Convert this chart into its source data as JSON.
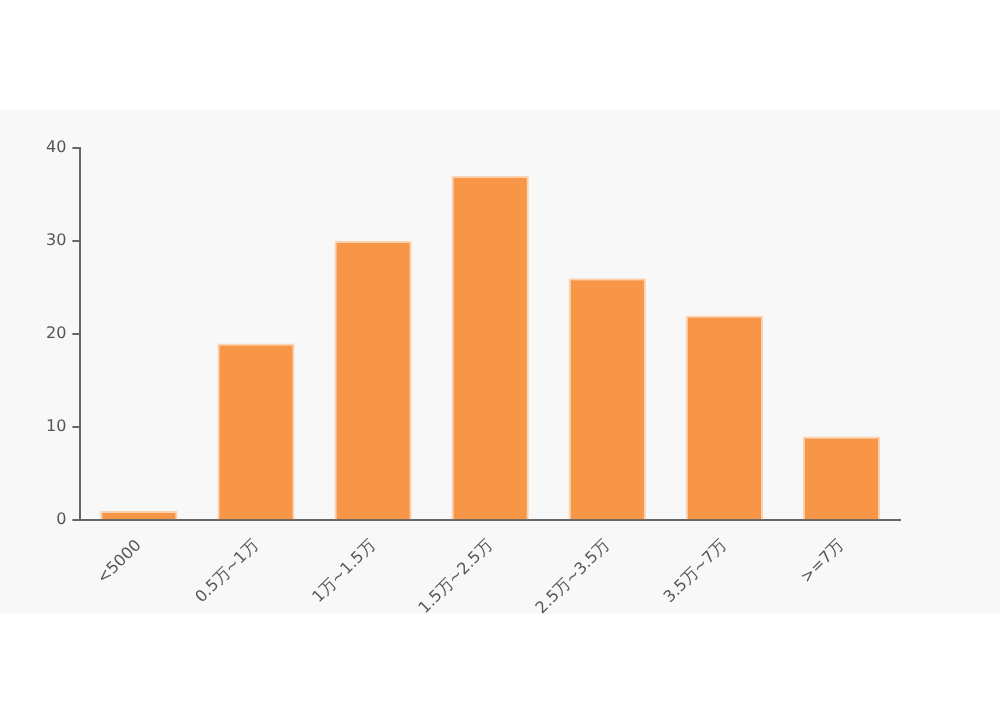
{
  "chart_data": {
    "type": "bar",
    "categories": [
      "<5000",
      "0.5万~1万",
      "1万~1.5万",
      "1.5万~2.5万",
      "2.5万~3.5万",
      "3.5万~7万",
      ">=7万"
    ],
    "values": [
      1,
      19,
      30,
      37,
      26,
      22,
      9
    ],
    "color": "#f79646",
    "ylim": [
      0,
      40
    ],
    "yticks": [
      0,
      10,
      20,
      30,
      40
    ],
    "grid": false,
    "legend": false
  }
}
